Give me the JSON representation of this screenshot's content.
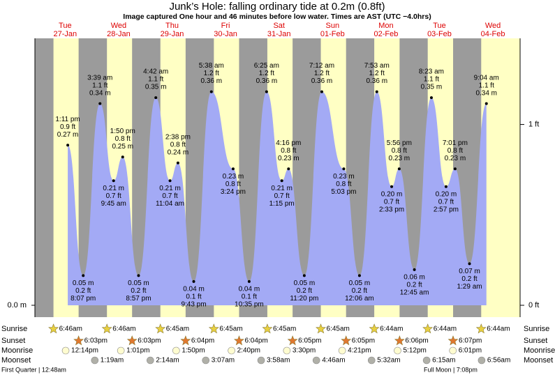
{
  "title": "Junk’s Hole: falling  ordinary tide at 0.2m (0.8ft)",
  "subtitle": "Image captured One hour and 46 minutes before low water. Times are AST (UTC −4.0hrs)",
  "row_labels": {
    "sunrise": "Sunrise",
    "sunset": "Sunset",
    "moonrise": "Moonrise",
    "moonset": "Moonset"
  },
  "moon_phases": [
    "First Quarter | 12:48am",
    "Full Moon | 7:08pm"
  ],
  "chart_data": {
    "type": "tide",
    "ylim": [
      -0.02,
      0.45
    ],
    "yticks": [
      {
        "value": 0,
        "label": "0.0 m"
      }
    ],
    "y2lim": [
      -0.0656,
      1.4764
    ],
    "y2ticks": [
      {
        "value": 1,
        "label": "1 ft"
      },
      {
        "value": 0,
        "label": "0 ft"
      }
    ],
    "colors": {
      "night": "#9b9b9b",
      "day": "#ffffc4",
      "water": "#a3aaf5",
      "day_label": "#dd0000"
    },
    "days": [
      {
        "weekday": "Tue",
        "date": "27-Jan",
        "sunrise": "6:46am",
        "sunset": "6:03pm",
        "moonrise": "12:14pm",
        "moonset": null,
        "tides": [
          {
            "time": "1:11 pm",
            "m": {
              "value": 0.27,
              "label": "0.27 m"
            },
            "ft": "0.9 ft"
          },
          {
            "time": "8:07 pm",
            "m": {
              "value": 0.05,
              "label": "0.05 m"
            },
            "ft": "0.2 ft"
          }
        ]
      },
      {
        "weekday": "Wed",
        "date": "28-Jan",
        "sunrise": "6:46am",
        "sunset": "6:03pm",
        "moonrise": "1:01pm",
        "moonset": "1:19am",
        "tides": [
          {
            "time": "3:39 am",
            "m": {
              "value": 0.34,
              "label": "0.34 m"
            },
            "ft": "1.1 ft"
          },
          {
            "time": "9:45 am",
            "m": {
              "value": 0.21,
              "label": "0.21 m"
            },
            "ft": "0.7 ft"
          },
          {
            "time": "1:50 pm",
            "m": {
              "value": 0.25,
              "label": "0.25 m"
            },
            "ft": "0.8 ft"
          },
          {
            "time": "8:57 pm",
            "m": {
              "value": 0.05,
              "label": "0.05 m"
            },
            "ft": "0.2 ft"
          }
        ]
      },
      {
        "weekday": "Thu",
        "date": "29-Jan",
        "sunrise": "6:45am",
        "sunset": "6:04pm",
        "moonrise": "1:50pm",
        "moonset": "2:14am",
        "tides": [
          {
            "time": "4:42 am",
            "m": {
              "value": 0.35,
              "label": "0.35 m"
            },
            "ft": "1.1 ft"
          },
          {
            "time": "11:04 am",
            "m": {
              "value": 0.21,
              "label": "0.21 m"
            },
            "ft": "0.7 ft"
          },
          {
            "time": "2:38 pm",
            "m": {
              "value": 0.24,
              "label": "0.24 m"
            },
            "ft": "0.8 ft"
          },
          {
            "time": "9:43 pm",
            "m": {
              "value": 0.04,
              "label": "0.04 m"
            },
            "ft": "0.1 ft"
          }
        ]
      },
      {
        "weekday": "Fri",
        "date": "30-Jan",
        "sunrise": "6:45am",
        "sunset": "6:04pm",
        "moonrise": "2:40pm",
        "moonset": "3:07am",
        "tides": [
          {
            "time": "5:38 am",
            "m": {
              "value": 0.36,
              "label": "0.36 m"
            },
            "ft": "1.2 ft"
          },
          {
            "time": "3:24 pm",
            "m": {
              "value": 0.23,
              "label": "0.23 m"
            },
            "ft": "0.8 ft"
          },
          {
            "time": "10:35 pm",
            "m": {
              "value": 0.04,
              "label": "0.04 m"
            },
            "ft": "0.1 ft"
          }
        ]
      },
      {
        "weekday": "Sat",
        "date": "31-Jan",
        "sunrise": "6:45am",
        "sunset": "6:05pm",
        "moonrise": "3:30pm",
        "moonset": "3:58am",
        "tides": [
          {
            "time": "6:25 am",
            "m": {
              "value": 0.36,
              "label": "0.36 m"
            },
            "ft": "1.2 ft"
          },
          {
            "time": "1:15 pm",
            "m": {
              "value": 0.21,
              "label": "0.21 m"
            },
            "ft": "0.7 ft"
          },
          {
            "time": "4:16 pm",
            "m": {
              "value": 0.23,
              "label": "0.23 m"
            },
            "ft": "0.8 ft"
          },
          {
            "time": "11:20 pm",
            "m": {
              "value": 0.05,
              "label": "0.05 m"
            },
            "ft": "0.2 ft"
          }
        ]
      },
      {
        "weekday": "Sun",
        "date": "01-Feb",
        "sunrise": "6:45am",
        "sunset": "6:05pm",
        "moonrise": "4:21pm",
        "moonset": "4:46am",
        "tides": [
          {
            "time": "7:12 am",
            "m": {
              "value": 0.36,
              "label": "0.36 m"
            },
            "ft": "1.2 ft"
          },
          {
            "time": "5:03 pm",
            "m": {
              "value": 0.23,
              "label": "0.23 m"
            },
            "ft": "0.8 ft"
          }
        ]
      },
      {
        "weekday": "Mon",
        "date": "02-Feb",
        "sunrise": "6:44am",
        "sunset": "6:06pm",
        "moonrise": "5:12pm",
        "moonset": "5:32am",
        "tides": [
          {
            "time": "12:06 am",
            "m": {
              "value": 0.05,
              "label": "0.05 m"
            },
            "ft": "0.2 ft"
          },
          {
            "time": "7:53 am",
            "m": {
              "value": 0.36,
              "label": "0.36 m"
            },
            "ft": "1.2 ft"
          },
          {
            "time": "2:33 pm",
            "m": {
              "value": 0.2,
              "label": "0.20 m"
            },
            "ft": "0.7 ft"
          },
          {
            "time": "5:56 pm",
            "m": {
              "value": 0.23,
              "label": "0.23 m"
            },
            "ft": "0.8 ft"
          }
        ]
      },
      {
        "weekday": "Tue",
        "date": "03-Feb",
        "sunrise": "6:44am",
        "sunset": "6:07pm",
        "moonrise": "6:01pm",
        "moonset": "6:15am",
        "tides": [
          {
            "time": "12:45 am",
            "m": {
              "value": 0.06,
              "label": "0.06 m"
            },
            "ft": "0.2 ft"
          },
          {
            "time": "8:23 am",
            "m": {
              "value": 0.35,
              "label": "0.35 m"
            },
            "ft": "1.1 ft"
          },
          {
            "time": "2:57 pm",
            "m": {
              "value": 0.2,
              "label": "0.20 m"
            },
            "ft": "0.7 ft"
          },
          {
            "time": "7:01 pm",
            "m": {
              "value": 0.23,
              "label": "0.23 m"
            },
            "ft": "0.8 ft"
          }
        ]
      },
      {
        "weekday": "Wed",
        "date": "04-Feb",
        "sunrise": "6:44am",
        "sunset": null,
        "moonrise": null,
        "moonset": "6:56am",
        "tides": [
          {
            "time": "1:29 am",
            "m": {
              "value": 0.07,
              "label": "0.07 m"
            },
            "ft": "0.2 ft"
          },
          {
            "time": "9:04 am",
            "m": {
              "value": 0.34,
              "label": "0.34 m"
            },
            "ft": "1.1 ft"
          }
        ]
      }
    ]
  }
}
